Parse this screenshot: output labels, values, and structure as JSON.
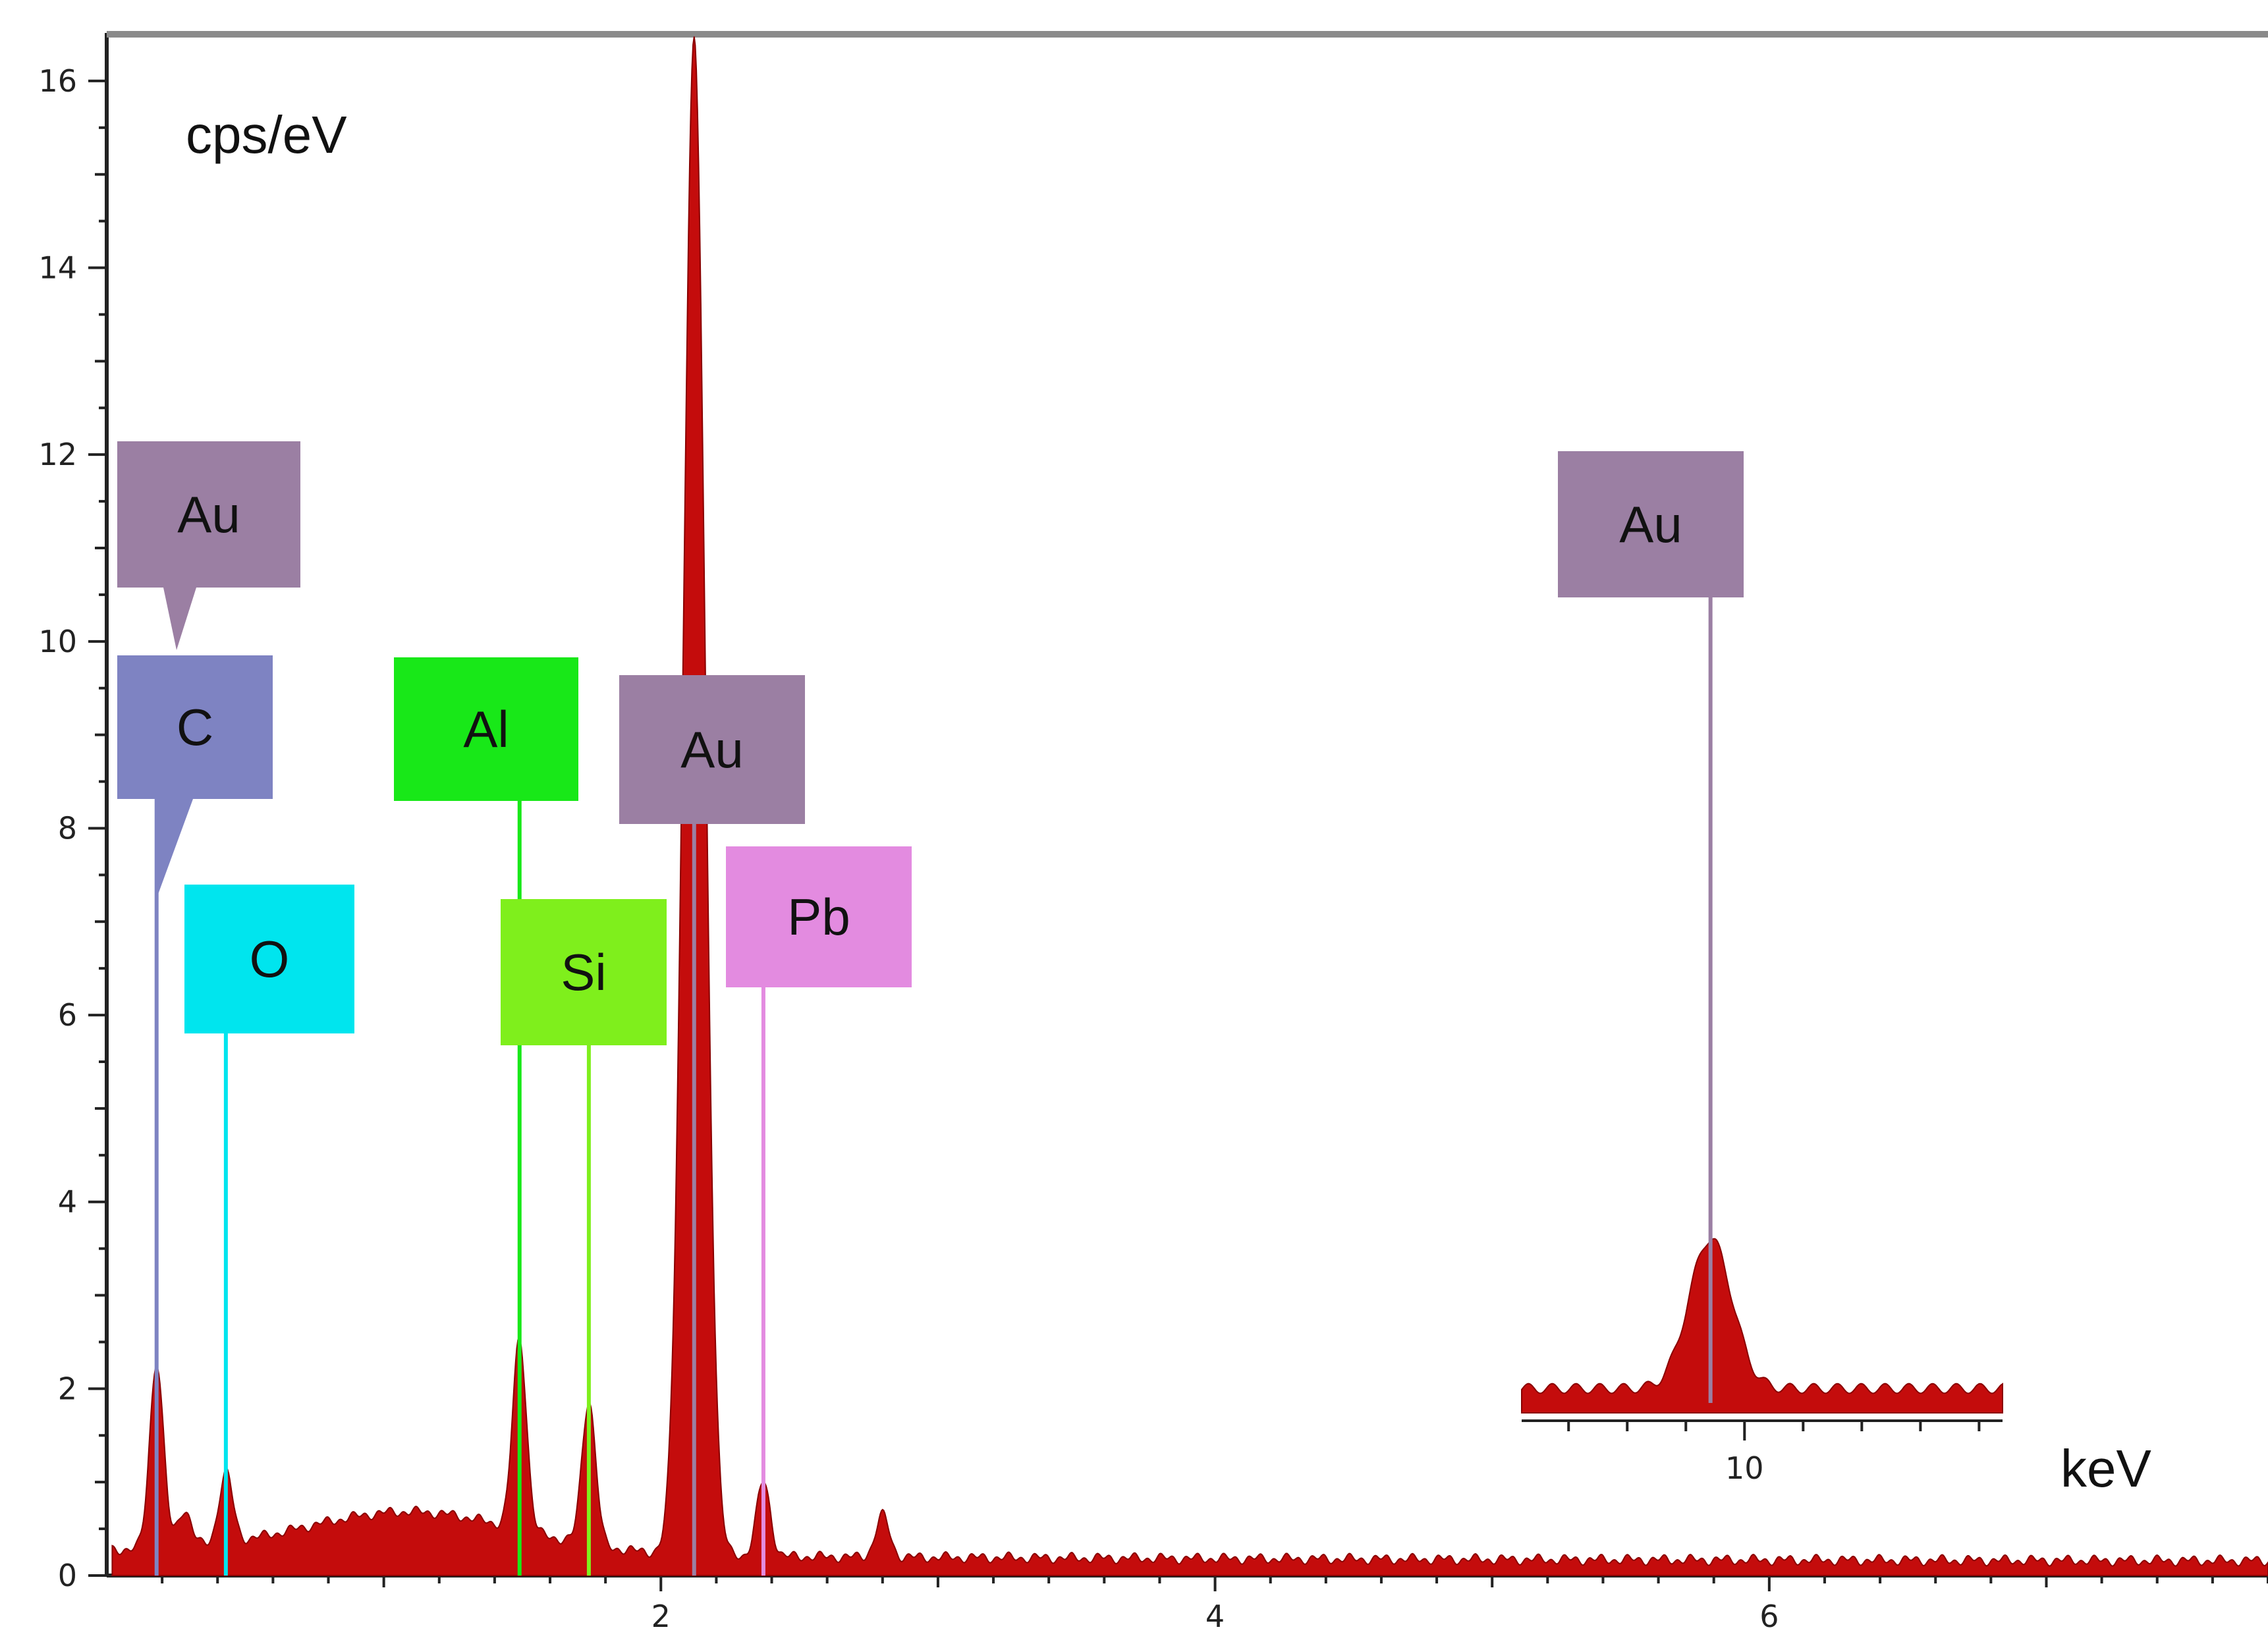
{
  "chart_data": {
    "type": "area",
    "title": "",
    "ylabel": "cps/eV",
    "xlabel": "keV",
    "xlim": [
      0,
      7.8
    ],
    "ylim": [
      0,
      16.5
    ],
    "x_ticks": [
      2,
      4,
      6
    ],
    "y_ticks": [
      0,
      2,
      4,
      6,
      8,
      10,
      12,
      14,
      16
    ],
    "grid": false,
    "colors": {
      "spectrum": "#c40c0c",
      "axis": "#222222",
      "Au": "#9b7fa3",
      "C": "#7e83c2",
      "O": "#00e5ee",
      "Al": "#18e818",
      "Si": "#7fef1c",
      "Pb": "#e38be0"
    },
    "spectrum": {
      "baseline": 0.15,
      "peaks": [
        {
          "x": 0.18,
          "y": 2.0
        },
        {
          "x": 0.28,
          "y": 0.4
        },
        {
          "x": 0.43,
          "y": 0.75
        },
        {
          "x": 1.49,
          "y": 2.05
        },
        {
          "x": 1.74,
          "y": 1.55
        },
        {
          "x": 2.12,
          "y": 16.2
        },
        {
          "x": 2.37,
          "y": 0.8
        },
        {
          "x": 2.8,
          "y": 0.45
        }
      ]
    },
    "annotations": [
      {
        "element": "Au",
        "energy": 0.18
      },
      {
        "element": "C",
        "energy": 0.18
      },
      {
        "element": "O",
        "energy": 0.43
      },
      {
        "element": "Al",
        "energy": 1.49
      },
      {
        "element": "Si",
        "energy": 1.74
      },
      {
        "element": "Au",
        "energy": 2.12
      },
      {
        "element": "Pb",
        "energy": 2.37
      }
    ],
    "inset": {
      "x_ticks": [
        10
      ],
      "peak": {
        "x": 9.71,
        "y": 3.7
      },
      "annotation": {
        "element": "Au",
        "energy": 9.71
      }
    }
  }
}
